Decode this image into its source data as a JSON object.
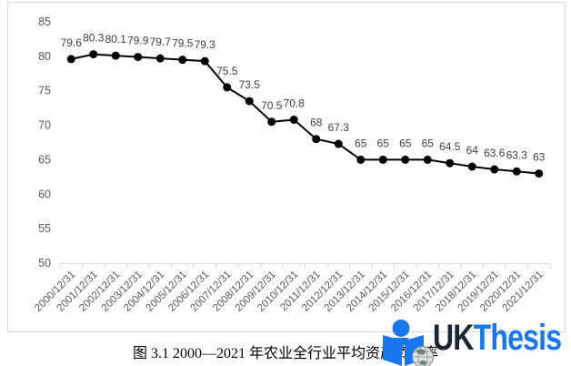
{
  "chart_data": {
    "type": "line",
    "categories": [
      "2000/12/31",
      "2001/12/31",
      "2002/12/31",
      "2003/12/31",
      "2004/12/31",
      "2005/12/31",
      "2006/12/31",
      "2007/12/31",
      "2008/12/31",
      "2009/12/31",
      "2010/12/31",
      "2011/12/31",
      "2012/12/31",
      "2013/12/31",
      "2014/12/31",
      "2015/12/31",
      "2016/12/31",
      "2017/12/31",
      "2018/12/31",
      "2019/12/31",
      "2020/12/31",
      "2021/12/31"
    ],
    "values": [
      79.6,
      80.3,
      80.1,
      79.9,
      79.7,
      79.5,
      79.3,
      75.5,
      73.5,
      70.5,
      70.8,
      68,
      67.3,
      65,
      65,
      65,
      65,
      64.5,
      64,
      63.6,
      63.3,
      63
    ],
    "data_labels": [
      "79.6",
      "80.3",
      "80.1",
      "79.9",
      "79.7",
      "79.5",
      "79.3",
      "75.5",
      "73.5",
      "70.5",
      "70.8",
      "68",
      "67.3",
      "65",
      "65",
      "65",
      "65",
      "64.5",
      "64",
      "63.6",
      "63.3",
      "63"
    ],
    "title": "",
    "xlabel": "",
    "ylabel": "",
    "ylim": [
      50,
      85
    ],
    "yticks": [
      85,
      80,
      75,
      70,
      65,
      60,
      55,
      50
    ],
    "grid": false,
    "legend": null,
    "marker": "circle",
    "colors": {
      "line": "#000000",
      "marker": "#000000",
      "data_label": "#404040",
      "axis_label": "#595959",
      "axis_line": "#d9d9d9",
      "frame_border": "#d9d9d9",
      "background": "#ffffff"
    }
  },
  "caption": {
    "text": "图 3.1 2000—2021 年农业全行业平均资产负债率"
  },
  "watermark": {
    "text_primary": "UK",
    "text_secondary": "Thesis",
    "icon": "person-reading-book-with-globe",
    "color_primary": "#1b2433",
    "color_secondary": "#1677f0",
    "icon_blue": "#1677f0"
  }
}
